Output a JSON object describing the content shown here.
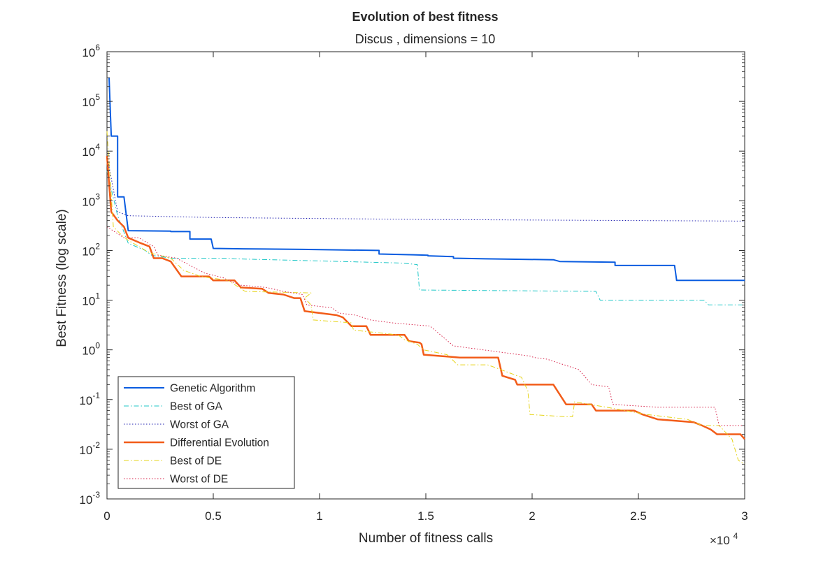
{
  "chart_data": {
    "type": "line",
    "title": "Evolution of best fitness",
    "subtitle": "Discus , dimensions = 10",
    "xlabel": "Number of fitness calls",
    "ylabel": "Best Fitness (log scale)",
    "x_multiplier_label": "×10",
    "x_multiplier_exponent": "4",
    "xlim": [
      0,
      30000
    ],
    "ylim": [
      0.001,
      1000000
    ],
    "yscale": "log",
    "grid": false,
    "legend_position": "bottom-left",
    "x_ticks": [
      {
        "value": 0,
        "label": "0"
      },
      {
        "value": 5000,
        "label": "0.5"
      },
      {
        "value": 10000,
        "label": "1"
      },
      {
        "value": 15000,
        "label": "1.5"
      },
      {
        "value": 20000,
        "label": "2"
      },
      {
        "value": 25000,
        "label": "2.5"
      },
      {
        "value": 30000,
        "label": "3"
      }
    ],
    "y_ticks": [
      {
        "value": 0.001,
        "base": "10",
        "exp": "-3"
      },
      {
        "value": 0.01,
        "base": "10",
        "exp": "-2"
      },
      {
        "value": 0.1,
        "base": "10",
        "exp": "-1"
      },
      {
        "value": 1,
        "base": "10",
        "exp": "0"
      },
      {
        "value": 10,
        "base": "10",
        "exp": "1"
      },
      {
        "value": 100,
        "base": "10",
        "exp": "2"
      },
      {
        "value": 1000,
        "base": "10",
        "exp": "3"
      },
      {
        "value": 10000,
        "base": "10",
        "exp": "4"
      },
      {
        "value": 100000,
        "base": "10",
        "exp": "5"
      },
      {
        "value": 1000000,
        "base": "10",
        "exp": "6"
      }
    ],
    "series": [
      {
        "name": "Genetic Algorithm",
        "color": "#0a5ce0",
        "style": "solid",
        "width": 2,
        "points": [
          [
            100,
            300000
          ],
          [
            200,
            20000
          ],
          [
            500,
            20000
          ],
          [
            500,
            1200
          ],
          [
            800,
            1200
          ],
          [
            1000,
            250
          ],
          [
            3000,
            245
          ],
          [
            3000,
            240
          ],
          [
            3900,
            240
          ],
          [
            3900,
            170
          ],
          [
            4900,
            170
          ],
          [
            5000,
            110
          ],
          [
            6400,
            108
          ],
          [
            9200,
            105
          ],
          [
            12800,
            100
          ],
          [
            12800,
            85
          ],
          [
            14400,
            82
          ],
          [
            15100,
            80
          ],
          [
            15100,
            78
          ],
          [
            16300,
            75
          ],
          [
            16300,
            70
          ],
          [
            17800,
            68
          ],
          [
            21000,
            65
          ],
          [
            21300,
            60
          ],
          [
            23900,
            58
          ],
          [
            23900,
            50
          ],
          [
            26700,
            50
          ],
          [
            26800,
            25
          ],
          [
            30000,
            25
          ]
        ]
      },
      {
        "name": "Best of GA",
        "color": "#1fc7c7",
        "style": "dashdot",
        "width": 1,
        "points": [
          [
            0,
            4000
          ],
          [
            500,
            500
          ],
          [
            1000,
            140
          ],
          [
            1800,
            100
          ],
          [
            2100,
            80
          ],
          [
            3000,
            70
          ],
          [
            5700,
            70
          ],
          [
            6000,
            68
          ],
          [
            9700,
            62
          ],
          [
            13800,
            56
          ],
          [
            14600,
            52
          ],
          [
            14700,
            16
          ],
          [
            23000,
            15
          ],
          [
            23200,
            10
          ],
          [
            28100,
            10
          ],
          [
            28300,
            8
          ],
          [
            30000,
            8
          ]
        ]
      },
      {
        "name": "Worst of GA",
        "color": "#2020b0",
        "style": "dotted",
        "width": 1,
        "points": [
          [
            0,
            8000
          ],
          [
            500,
            600
          ],
          [
            1000,
            500
          ],
          [
            3000,
            480
          ],
          [
            5000,
            460
          ],
          [
            15000,
            420
          ],
          [
            30000,
            390
          ]
        ]
      },
      {
        "name": "Differential Evolution",
        "color": "#f25c19",
        "style": "solid",
        "width": 2.5,
        "points": [
          [
            0,
            8000
          ],
          [
            200,
            600
          ],
          [
            500,
            400
          ],
          [
            800,
            300
          ],
          [
            1000,
            180
          ],
          [
            1600,
            140
          ],
          [
            2000,
            120
          ],
          [
            2200,
            70
          ],
          [
            2600,
            70
          ],
          [
            3000,
            60
          ],
          [
            3500,
            30
          ],
          [
            4800,
            30
          ],
          [
            5000,
            25
          ],
          [
            6000,
            25
          ],
          [
            6300,
            18
          ],
          [
            7300,
            17
          ],
          [
            7600,
            14
          ],
          [
            8300,
            13
          ],
          [
            8800,
            11
          ],
          [
            9100,
            11
          ],
          [
            9300,
            6
          ],
          [
            10800,
            5
          ],
          [
            11100,
            4.5
          ],
          [
            11500,
            3
          ],
          [
            12200,
            3
          ],
          [
            12400,
            2
          ],
          [
            14000,
            2
          ],
          [
            14200,
            1.5
          ],
          [
            14700,
            1.4
          ],
          [
            14800,
            1.3
          ],
          [
            14900,
            0.8
          ],
          [
            16600,
            0.7
          ],
          [
            18400,
            0.7
          ],
          [
            18600,
            0.3
          ],
          [
            19200,
            0.25
          ],
          [
            19300,
            0.2
          ],
          [
            21000,
            0.2
          ],
          [
            21600,
            0.08
          ],
          [
            22800,
            0.08
          ],
          [
            23000,
            0.06
          ],
          [
            24800,
            0.06
          ],
          [
            25200,
            0.05
          ],
          [
            25900,
            0.04
          ],
          [
            27600,
            0.035
          ],
          [
            28000,
            0.03
          ],
          [
            28400,
            0.025
          ],
          [
            28700,
            0.02
          ],
          [
            29800,
            0.02
          ],
          [
            30000,
            0.016
          ]
        ]
      },
      {
        "name": "Best of DE",
        "color": "#e6d41a",
        "style": "dashdot",
        "width": 1,
        "points": [
          [
            0,
            25000
          ],
          [
            300,
            300
          ],
          [
            700,
            200
          ],
          [
            1000,
            160
          ],
          [
            1500,
            120
          ],
          [
            2000,
            90
          ],
          [
            3000,
            70
          ],
          [
            3600,
            40
          ],
          [
            4400,
            30
          ],
          [
            5700,
            25
          ],
          [
            6500,
            15
          ],
          [
            9600,
            14
          ],
          [
            9300,
            11
          ],
          [
            9600,
            8
          ],
          [
            9700,
            4
          ],
          [
            11500,
            3.5
          ],
          [
            11600,
            2.5
          ],
          [
            13700,
            2
          ],
          [
            14000,
            1.6
          ],
          [
            14600,
            1.3
          ],
          [
            14900,
            1
          ],
          [
            16000,
            0.8
          ],
          [
            16500,
            0.5
          ],
          [
            17900,
            0.5
          ],
          [
            18200,
            0.45
          ],
          [
            19500,
            0.28
          ],
          [
            19800,
            0.15
          ],
          [
            19900,
            0.05
          ],
          [
            21600,
            0.045
          ],
          [
            21900,
            0.045
          ],
          [
            22000,
            0.09
          ],
          [
            23500,
            0.07
          ],
          [
            25400,
            0.05
          ],
          [
            27300,
            0.04
          ],
          [
            28000,
            0.03
          ],
          [
            28800,
            0.03
          ],
          [
            29400,
            0.016
          ],
          [
            29700,
            0.006
          ],
          [
            30000,
            0.005
          ]
        ]
      },
      {
        "name": "Worst of DE",
        "color": "#d7234a",
        "style": "dotted",
        "width": 1,
        "points": [
          [
            0,
            300
          ],
          [
            800,
            180
          ],
          [
            1500,
            180
          ],
          [
            2200,
            120
          ],
          [
            2400,
            80
          ],
          [
            3300,
            70
          ],
          [
            3400,
            65
          ],
          [
            4600,
            35
          ],
          [
            5500,
            28
          ],
          [
            5700,
            25
          ],
          [
            6300,
            20
          ],
          [
            7500,
            18
          ],
          [
            8300,
            15
          ],
          [
            9200,
            13
          ],
          [
            9400,
            8
          ],
          [
            10600,
            7
          ],
          [
            10900,
            5.5
          ],
          [
            11700,
            5
          ],
          [
            12400,
            4
          ],
          [
            13400,
            3.5
          ],
          [
            15200,
            3
          ],
          [
            16300,
            1.2
          ],
          [
            19900,
            0.75
          ],
          [
            20100,
            0.7
          ],
          [
            20700,
            0.65
          ],
          [
            22200,
            0.4
          ],
          [
            22800,
            0.2
          ],
          [
            23600,
            0.18
          ],
          [
            23800,
            0.08
          ],
          [
            25900,
            0.07
          ],
          [
            28600,
            0.07
          ],
          [
            28800,
            0.03
          ],
          [
            30000,
            0.03
          ]
        ]
      }
    ]
  }
}
